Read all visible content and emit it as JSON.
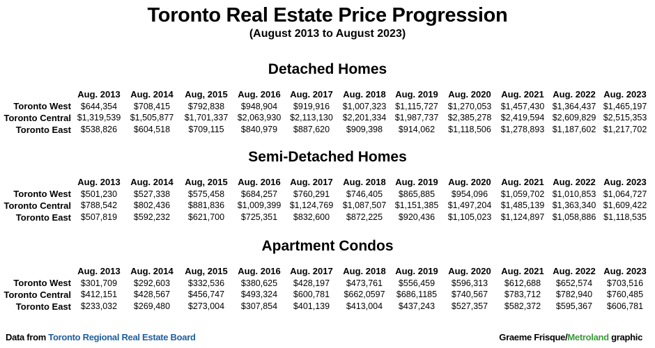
{
  "title": "Toronto Real Estate Price Progression",
  "subtitle": "(August 2013 to August 2023)",
  "columns": [
    "Aug. 2013",
    "Aug. 2014",
    "Aug, 2015",
    "Aug. 2016",
    "Aug. 2017",
    "Aug. 2018",
    "Aug. 2019",
    "Aug. 2020",
    "Aug. 2021",
    "Aug. 2022",
    "Aug. 2023"
  ],
  "sections": [
    {
      "title": "Detached Homes",
      "rows": [
        {
          "label": "Toronto West",
          "values": [
            "$644,354",
            "$708,415",
            "$792,838",
            "$948,904",
            "$919,916",
            "$1,007,323",
            "$1,115,727",
            "$1,270,053",
            "$1,457,430",
            "$1,364,437",
            "$1,465,197"
          ]
        },
        {
          "label": "Toronto Central",
          "values": [
            "$1,319,539",
            "$1,505,877",
            "$1,701,337",
            "$2,063,930",
            "$2,113,130",
            "$2,201,334",
            "$1,987,737",
            "$2,385,278",
            "$2,419,594",
            "$2,609,829",
            "$2,515,353"
          ]
        },
        {
          "label": "Toronto East",
          "values": [
            "$538,826",
            "$604,518",
            "$709,115",
            "$840,979",
            "$887,620",
            "$909,398",
            "$914,062",
            "$1,118,506",
            "$1,278,893",
            "$1,187,602",
            "$1,217,702"
          ]
        }
      ]
    },
    {
      "title": "Semi-Detached Homes",
      "rows": [
        {
          "label": "Toronto West",
          "values": [
            "$501,230",
            "$527,338",
            "$575,458",
            "$684,257",
            "$760,291",
            "$746,405",
            "$865,885",
            "$954,096",
            "$1,059,702",
            "$1,010,853",
            "$1,064,727"
          ]
        },
        {
          "label": "Toronto Central",
          "values": [
            "$788,542",
            "$802,436",
            "$881,836",
            "$1,009,399",
            "$1,124,769",
            "$1,087,507",
            "$1,151,385",
            "$1,497,204",
            "$1,485,139",
            "$1,363,340",
            "$1,609,422"
          ]
        },
        {
          "label": "Toronto East",
          "values": [
            "$507,819",
            "$592,232",
            "$621,700",
            "$725,351",
            "$832,600",
            "$872,225",
            "$920,436",
            "$1,105,023",
            "$1,124,897",
            "$1,058,886",
            "$1,118,535"
          ]
        }
      ]
    },
    {
      "title": "Apartment Condos",
      "rows": [
        {
          "label": "Toronto West",
          "values": [
            "$301,709",
            "$292,603",
            "$332,536",
            "$380,625",
            "$428,197",
            "$473,761",
            "$556,459",
            "$596,313",
            "$612,688",
            "$652,574",
            "$703,516"
          ]
        },
        {
          "label": "Toronto Central",
          "values": [
            "$412,151",
            "$428,567",
            "$456,747",
            "$493,324",
            "$600,781",
            "$662,0597",
            "$686,1185",
            "$740,567",
            "$783,712",
            "$782,940",
            "$760,485"
          ]
        },
        {
          "label": "Toronto East",
          "values": [
            "$233,032",
            "$269,480",
            "$273,004",
            "$307,854",
            "$401,139",
            "$413,004",
            "$437,243",
            "$527,357",
            "$582,372",
            "$595,367",
            "$606,781"
          ]
        }
      ]
    }
  ],
  "footer": {
    "source_prefix": "Data from ",
    "source_link": "Toronto Regional Real Estate Board",
    "credit_name": "Graeme Frisque/",
    "credit_brand": "Metroland",
    "credit_suffix": " graphic"
  },
  "colors": {
    "source_link": "#1f5fa0",
    "brand": "#3a9a3a",
    "text": "#000000"
  }
}
